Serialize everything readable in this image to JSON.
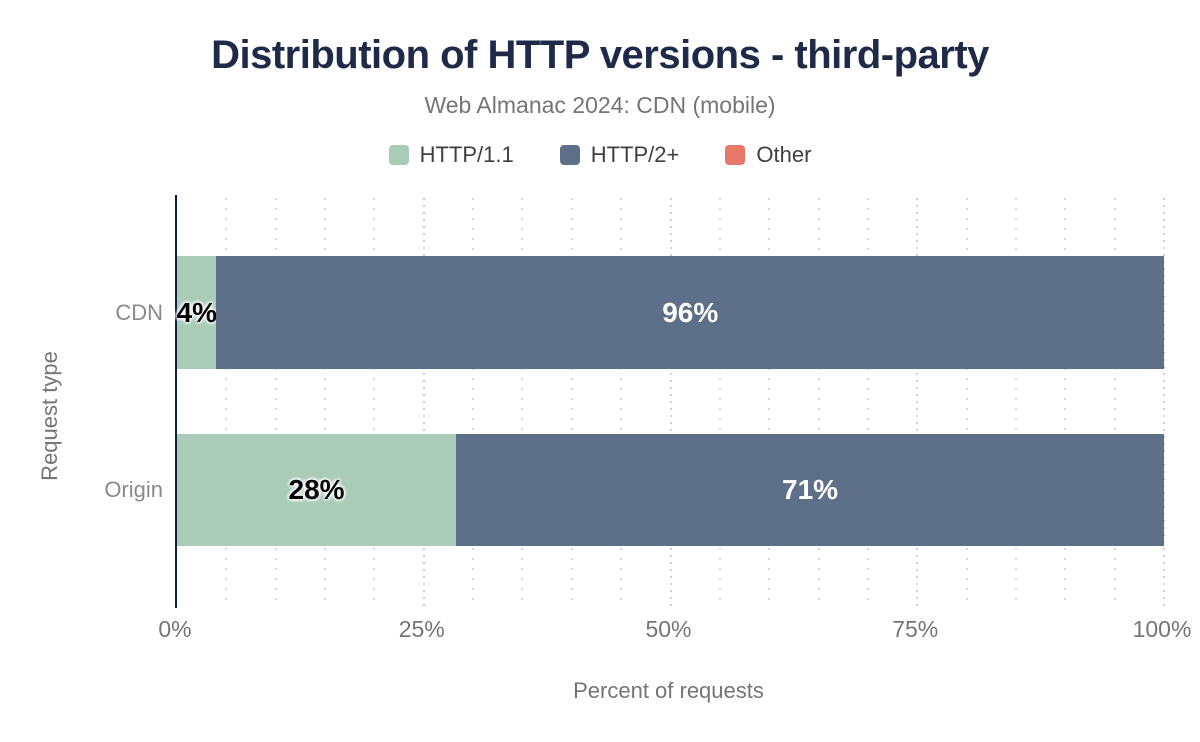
{
  "chart_data": {
    "type": "bar",
    "orientation": "horizontal",
    "stacked": true,
    "title": "Distribution of HTTP versions - third-party",
    "subtitle": "Web Almanac 2024: CDN (mobile)",
    "categories": [
      "CDN",
      "Origin"
    ],
    "series": [
      {
        "name": "HTTP/1.1",
        "color": "#a9cbb7",
        "values": [
          4,
          28
        ]
      },
      {
        "name": "HTTP/2+",
        "color": "#5e7089",
        "values": [
          96,
          71
        ]
      },
      {
        "name": "Other",
        "color": "#e8796a",
        "values": [
          0,
          0
        ]
      }
    ],
    "data_labels": [
      [
        "4%",
        "96%",
        ""
      ],
      [
        "28%",
        "71%",
        ""
      ]
    ],
    "xlabel": "Percent of requests",
    "ylabel": "Request type",
    "xticks": [
      "0%",
      "25%",
      "50%",
      "75%",
      "100%"
    ],
    "xlim": [
      0,
      100
    ],
    "grid": {
      "vertical_dotted": true,
      "minor_step_pct": 5,
      "major_step_pct": 25
    },
    "legend_position": "top"
  },
  "colors": {
    "title": "#1e2a47",
    "subtitle": "#757575",
    "legend_text": "#3f3f3f",
    "axis_text": "#757575",
    "category_text": "#8a8a8a",
    "axis_line": "#10203a",
    "grid_dot": "#d8d8d8",
    "background": "#ffffff",
    "label_on_light": "#000000",
    "label_on_dark": "#ffffff"
  }
}
